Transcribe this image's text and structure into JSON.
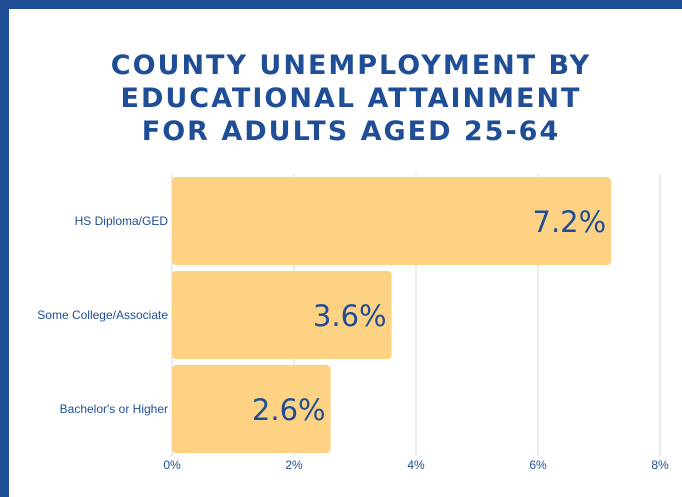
{
  "title_lines": [
    "COUNTY UNEMPLOYMENT BY",
    "EDUCATIONAL ATTAINMENT",
    "FOR ADULTS AGED 25-64"
  ],
  "colors": {
    "frame": "#1f4e96",
    "title": "#1f4e96",
    "bar": "#fdd383",
    "grid": "#d9d9d9",
    "axis_text": "#1f4e96",
    "value_label": "#1f4e96"
  },
  "chart_data": {
    "type": "bar",
    "orientation": "horizontal",
    "title": "COUNTY UNEMPLOYMENT BY EDUCATIONAL ATTAINMENT FOR ADULTS AGED 25-64",
    "categories": [
      "HS Diploma/GED",
      "Some College/Associate",
      "Bachelor's or Higher"
    ],
    "values": [
      7.2,
      3.6,
      2.6
    ],
    "value_labels": [
      "7.2%",
      "3.6%",
      "2.6%"
    ],
    "xlim": [
      0,
      8
    ],
    "x_ticks": [
      0,
      2,
      4,
      6,
      8
    ],
    "x_tick_labels": [
      "0%",
      "2%",
      "4%",
      "6%",
      "8%"
    ],
    "xlabel": "",
    "ylabel": "",
    "grid": true,
    "legend": "none"
  }
}
